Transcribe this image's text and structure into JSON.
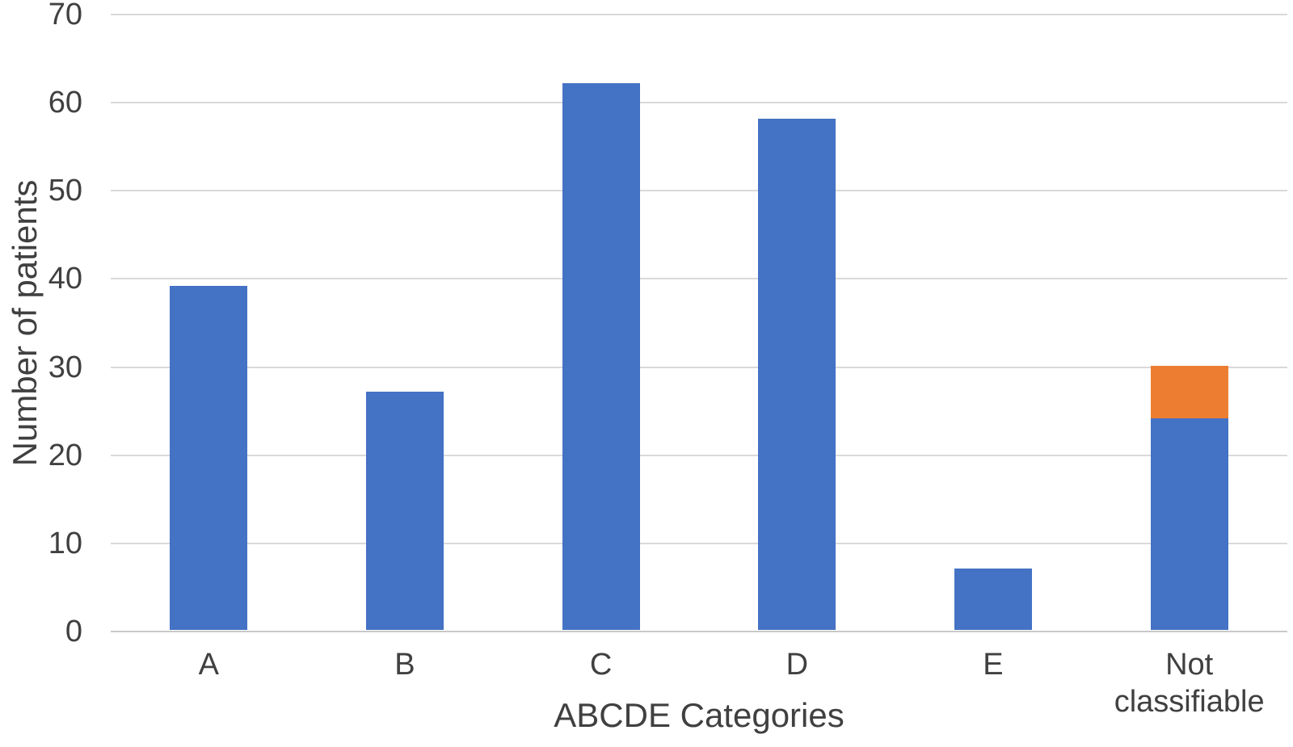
{
  "chart_data": {
    "type": "bar",
    "stacked": true,
    "categories": [
      "A",
      "B",
      "C",
      "D",
      "E",
      "Not classifiable"
    ],
    "series": [
      {
        "name": "blue-series",
        "color": "#4472C4",
        "values": [
          39,
          27,
          62,
          58,
          7,
          24
        ]
      },
      {
        "name": "orange-series",
        "color": "#ED7D31",
        "values": [
          0,
          0,
          0,
          0,
          0,
          6
        ]
      }
    ],
    "totals": [
      39,
      27,
      62,
      58,
      7,
      30
    ],
    "xlabel": "ABCDE Categories",
    "ylabel": "Number of patients",
    "ylim": [
      0,
      70
    ],
    "yticks": [
      0,
      10,
      20,
      30,
      40,
      50,
      60,
      70
    ],
    "grid": "horizontal",
    "legend": "none",
    "colors": {
      "background": "#ffffff",
      "gridline": "#d9d9d9",
      "axis_line": "#c9c9c9",
      "text": "#404040"
    }
  }
}
